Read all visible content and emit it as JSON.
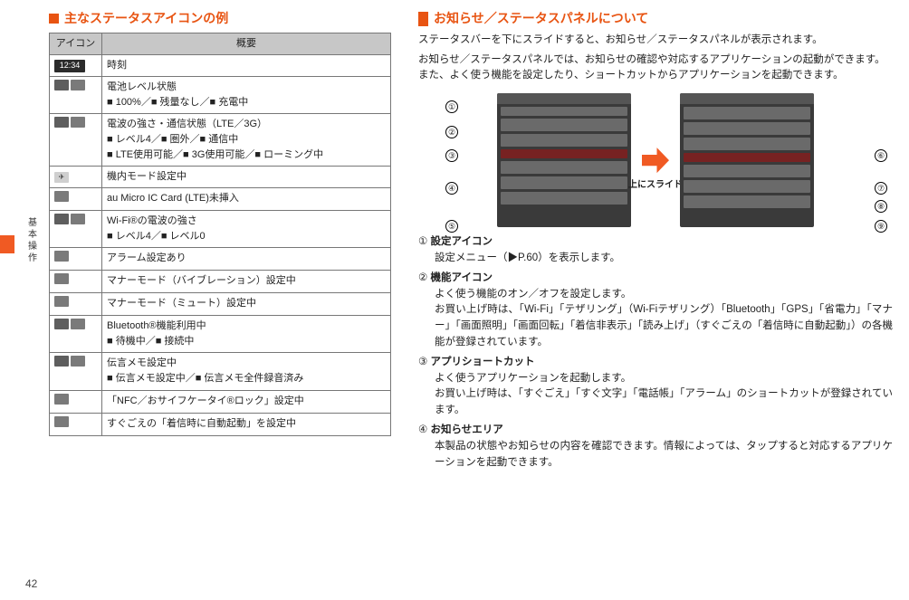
{
  "pageNumber": "42",
  "sideTab": "",
  "sideLabel": "基本操作",
  "left": {
    "title": "主なステータスアイコンの例",
    "th1": "アイコン",
    "th2": "概要",
    "rows": [
      {
        "iconText": "12:34",
        "iconClass": "lg dk",
        "body": "時刻"
      },
      {
        "iconText": "",
        "iconClass": "",
        "body": "電池レベル状態",
        "sub": "■ 100%／■ 残量なし／■ 充電中"
      },
      {
        "iconText": "",
        "iconClass": "",
        "body": "電波の強さ・通信状態（LTE／3G）",
        "sub": "■ レベル4／■ 圏外／■ 通信中\n■ LTE使用可能／■ 3G使用可能／■ ローミング中"
      },
      {
        "iconText": "✈",
        "iconClass": "lt",
        "body": "機内モード設定中"
      },
      {
        "iconText": "",
        "iconClass": "gy",
        "body": "au Micro IC Card (LTE)未挿入"
      },
      {
        "iconText": "",
        "iconClass": "",
        "body": "Wi-Fi®の電波の強さ",
        "sub": "■ レベル4／■ レベル0"
      },
      {
        "iconText": "",
        "iconClass": "gy",
        "body": "アラーム設定あり"
      },
      {
        "iconText": "",
        "iconClass": "gy",
        "body": "マナーモード（バイブレーション）設定中"
      },
      {
        "iconText": "",
        "iconClass": "gy",
        "body": "マナーモード（ミュート）設定中"
      },
      {
        "iconText": "",
        "iconClass": "",
        "body": "Bluetooth®機能利用中",
        "sub": "■ 待機中／■ 接続中"
      },
      {
        "iconText": "",
        "iconClass": "",
        "body": "伝言メモ設定中",
        "sub": "■ 伝言メモ設定中／■ 伝言メモ全件録音済み"
      },
      {
        "iconText": "",
        "iconClass": "gy",
        "body": "「NFC／おサイフケータイ®ロック」設定中"
      },
      {
        "iconText": "",
        "iconClass": "gy",
        "body": "すぐごえの「着信時に自動起動」を設定中"
      }
    ]
  },
  "right": {
    "title": "お知らせ／ステータスパネルについて",
    "intro": [
      "ステータスバーを下にスライドすると、お知らせ／ステータスパネルが表示されます。",
      "お知らせ／ステータスパネルでは、お知らせの確認や対応するアプリケーションの起動ができます。また、よく使う機能を設定したり、ショートカットからアプリケーションを起動できます。"
    ],
    "slideLabel": "上にスライド",
    "callouts": [
      "①",
      "②",
      "③",
      "④",
      "⑤",
      "⑥",
      "⑦",
      "⑧",
      "⑨"
    ],
    "defs": [
      {
        "n": "①",
        "h": "設定アイコン",
        "b": "設定メニュー（▶P.60）を表示します。"
      },
      {
        "n": "②",
        "h": "機能アイコン",
        "b": "よく使う機能のオン／オフを設定します。\nお買い上げ時は、「Wi-Fi」「テザリング」（Wi-Fiテザリング）「Bluetooth」「GPS」「省電力」「マナー」「画面照明」「画面回転」「着信非表示」「読み上げ」（すぐごえの「着信時に自動起動」）の各機能が登録されています。"
      },
      {
        "n": "③",
        "h": "アプリショートカット",
        "b": "よく使うアプリケーションを起動します。\nお買い上げ時は、「すぐごえ」「すぐ文字」「電話帳」「アラーム」のショートカットが登録されています。"
      },
      {
        "n": "④",
        "h": "お知らせエリア",
        "b": "本製品の状態やお知らせの内容を確認できます。情報によっては、タップすると対応するアプリケーションを起動できます。"
      }
    ]
  },
  "colors": {
    "accent": "#e85412",
    "orange": "#f05a23",
    "thBg": "#c7c7c7",
    "iconDk": "#2b2b2b",
    "iconGy": "#7a7a7a",
    "border": "#777"
  }
}
